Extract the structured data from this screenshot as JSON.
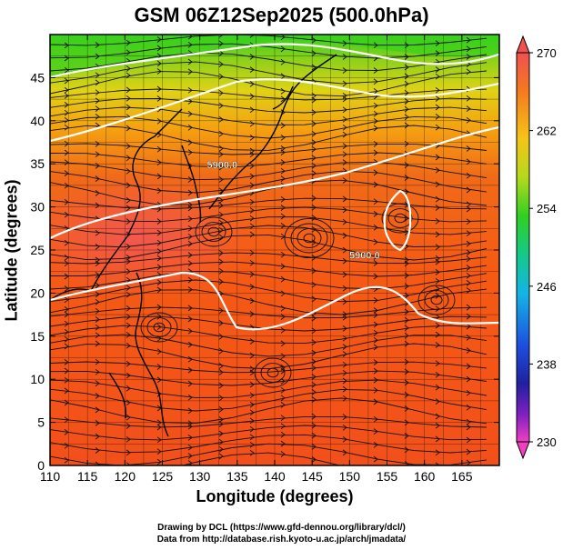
{
  "title": "GSM 06Z12Sep2025 (500.0hPa)",
  "credits": {
    "line1": "Drawing by DCL (https://www.gfd-dennou.org/library/dcl/)",
    "line2": "Data from http://database.rish.kyoto-u.ac.jp/arch/jmadata/"
  },
  "chart_data": {
    "type": "heatmap",
    "title": "GSM 06Z12Sep2025 (500.0hPa)",
    "xlabel": "Longitude (degrees)",
    "ylabel": "Latitude (degrees)",
    "xlim": [
      110,
      170
    ],
    "ylim": [
      0,
      50
    ],
    "x_ticks": [
      110,
      115,
      120,
      125,
      130,
      135,
      140,
      145,
      150,
      155,
      160,
      165
    ],
    "y_ticks": [
      0,
      5,
      10,
      15,
      20,
      25,
      30,
      35,
      40,
      45
    ],
    "colorbar": {
      "min": 230,
      "max": 270,
      "ticks": [
        230,
        238,
        246,
        254,
        262,
        270
      ]
    },
    "contour_labels": [
      {
        "text": "5900.0",
        "lon": 133,
        "lat": 34.5
      },
      {
        "text": "5900.0",
        "lon": 152,
        "lat": 24
      }
    ]
  }
}
